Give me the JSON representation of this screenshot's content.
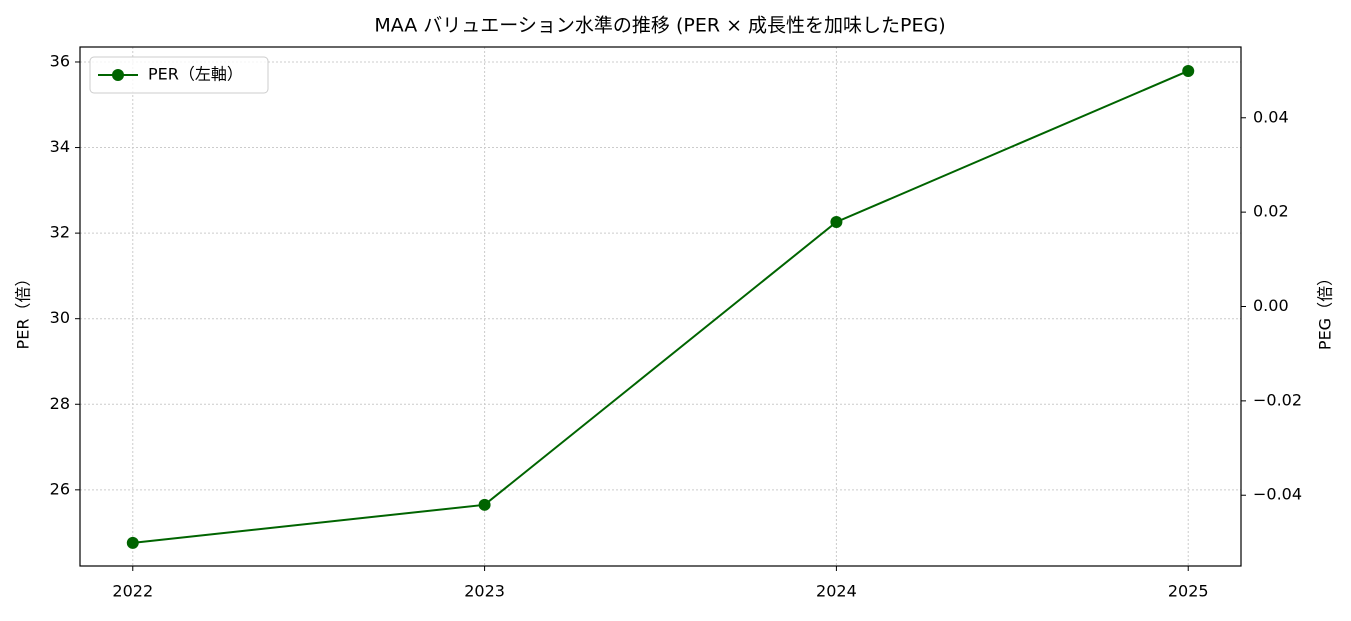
{
  "chart_data": {
    "type": "line",
    "title": "MAA バリュエーション水準の推移 (PER × 成長性を加味したPEG)",
    "x": [
      2022,
      2023,
      2024,
      2025
    ],
    "series": [
      {
        "name": "PER（左軸）",
        "color": "#006400",
        "values": [
          24.76,
          25.65,
          32.26,
          35.79
        ]
      }
    ],
    "xlim": [
      2021.85,
      2025.15
    ],
    "xticks": [
      2022,
      2023,
      2024,
      2025
    ],
    "ylim": [
      24.22,
      36.35
    ],
    "yticks": [
      26,
      28,
      30,
      32,
      34,
      36
    ],
    "y2lim": [
      -0.055,
      0.055
    ],
    "y2ticks": [
      {
        "value": -0.04,
        "label": "−0.04"
      },
      {
        "value": -0.02,
        "label": "−0.02"
      },
      {
        "value": 0,
        "label": "0.00"
      },
      0.02,
      0.04
    ],
    "ylabel": "PER（倍）",
    "y2label": "PEG（倍）",
    "grid": true,
    "legend": "upper left"
  }
}
